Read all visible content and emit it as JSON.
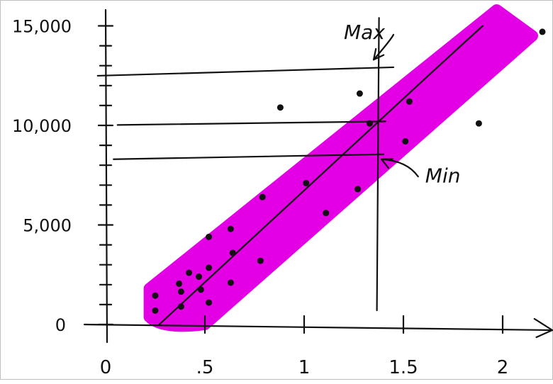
{
  "chart_data": {
    "type": "scatter",
    "xlim": [
      0,
      2
    ],
    "ylim": [
      0,
      15000
    ],
    "x_ticks": [
      {
        "value": 0,
        "label": "0"
      },
      {
        "value": 0.5,
        "label": ".5"
      },
      {
        "value": 1,
        "label": "1"
      },
      {
        "value": 1.5,
        "label": "1.5"
      },
      {
        "value": 2,
        "label": "2"
      }
    ],
    "y_ticks": [
      {
        "value": 0,
        "label": "0"
      },
      {
        "value": 5000,
        "label": "5,000"
      },
      {
        "value": 10000,
        "label": "10,000"
      },
      {
        "value": 15000,
        "label": "15,000"
      }
    ],
    "band_color": "#e400e4",
    "trend_line": [
      {
        "x": 0.27,
        "y": 0
      },
      {
        "x": 1.9,
        "y": 15000
      }
    ],
    "band": {
      "upper": [
        {
          "x": 0.22,
          "y": 1800
        },
        {
          "x": 1.97,
          "y": 15800
        }
      ],
      "lower": [
        {
          "x": 0.5,
          "y": 0
        },
        {
          "x": 2.15,
          "y": 14500
        }
      ]
    },
    "reference_lines": {
      "max_y": 12600,
      "mid_y": 10200,
      "min_y": 8300,
      "vertical_x": 1.37
    },
    "annotations": [
      {
        "label": "Max",
        "x": 1.2,
        "y": 14700,
        "arrow_to": {
          "x": 1.35,
          "y": 13300
        }
      },
      {
        "label": "Min",
        "x": 1.61,
        "y": 7500,
        "arrow_to": {
          "x": 1.39,
          "y": 8300
        }
      }
    ],
    "points": [
      {
        "x": 0.25,
        "y": 1450
      },
      {
        "x": 0.25,
        "y": 700
      },
      {
        "x": 0.37,
        "y": 2050
      },
      {
        "x": 0.42,
        "y": 2600
      },
      {
        "x": 0.38,
        "y": 1650
      },
      {
        "x": 0.47,
        "y": 2400
      },
      {
        "x": 0.52,
        "y": 2850
      },
      {
        "x": 0.48,
        "y": 1750
      },
      {
        "x": 0.52,
        "y": 1100
      },
      {
        "x": 0.38,
        "y": 900
      },
      {
        "x": 0.52,
        "y": 4400
      },
      {
        "x": 0.63,
        "y": 4800
      },
      {
        "x": 0.64,
        "y": 3600
      },
      {
        "x": 0.63,
        "y": 2100
      },
      {
        "x": 0.78,
        "y": 3200
      },
      {
        "x": 0.79,
        "y": 6400
      },
      {
        "x": 1.01,
        "y": 7100
      },
      {
        "x": 1.11,
        "y": 5600
      },
      {
        "x": 1.27,
        "y": 6800
      },
      {
        "x": 0.88,
        "y": 10900
      },
      {
        "x": 1.28,
        "y": 11600
      },
      {
        "x": 1.53,
        "y": 11200
      },
      {
        "x": 1.51,
        "y": 9200
      },
      {
        "x": 1.88,
        "y": 10100
      },
      {
        "x": 2.2,
        "y": 14700
      },
      {
        "x": 1.33,
        "y": 10100
      }
    ]
  }
}
